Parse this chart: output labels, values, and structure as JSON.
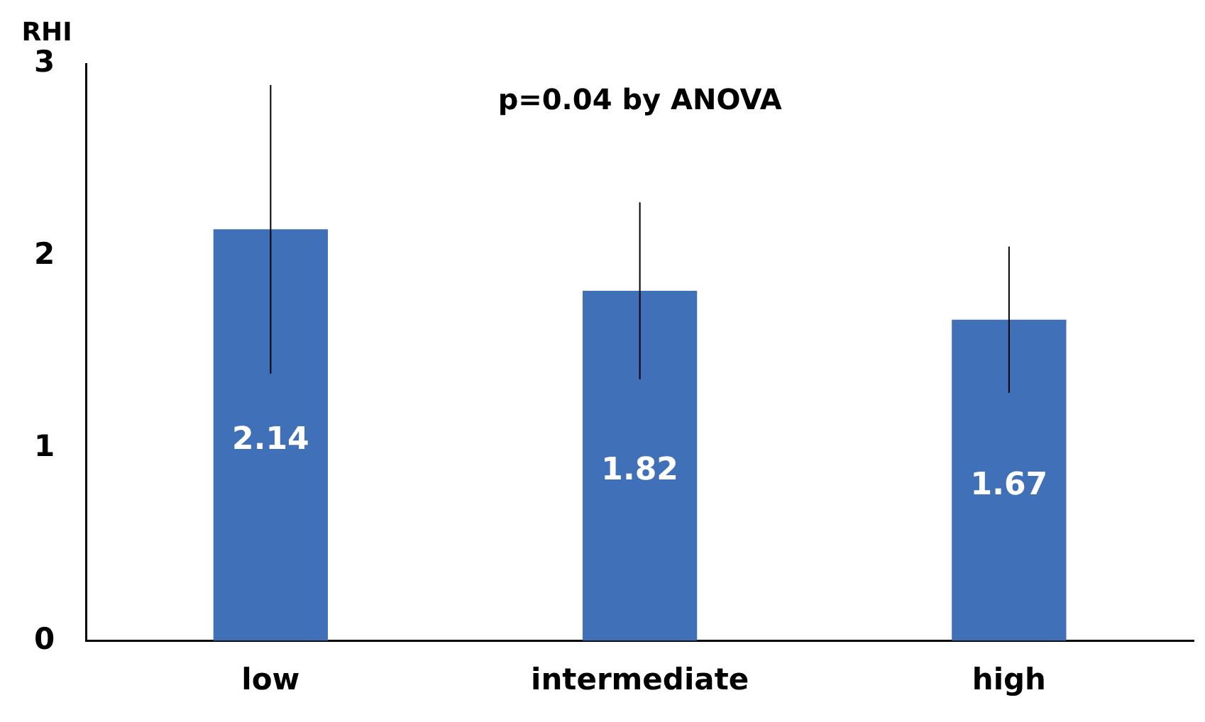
{
  "chart_data": {
    "type": "bar",
    "ylabel": "RHI",
    "annotations": [
      "p=0.04 by ANOVA"
    ],
    "categories": [
      "low",
      "intermediate",
      "high"
    ],
    "values": [
      2.14,
      1.82,
      1.67
    ],
    "errors": [
      0.75,
      0.46,
      0.38
    ],
    "color": "#3f70b8",
    "ylim": [
      0,
      3
    ],
    "yticks": [
      0,
      1,
      2,
      3
    ],
    "grid": false,
    "legend": false,
    "data_labels": true
  }
}
